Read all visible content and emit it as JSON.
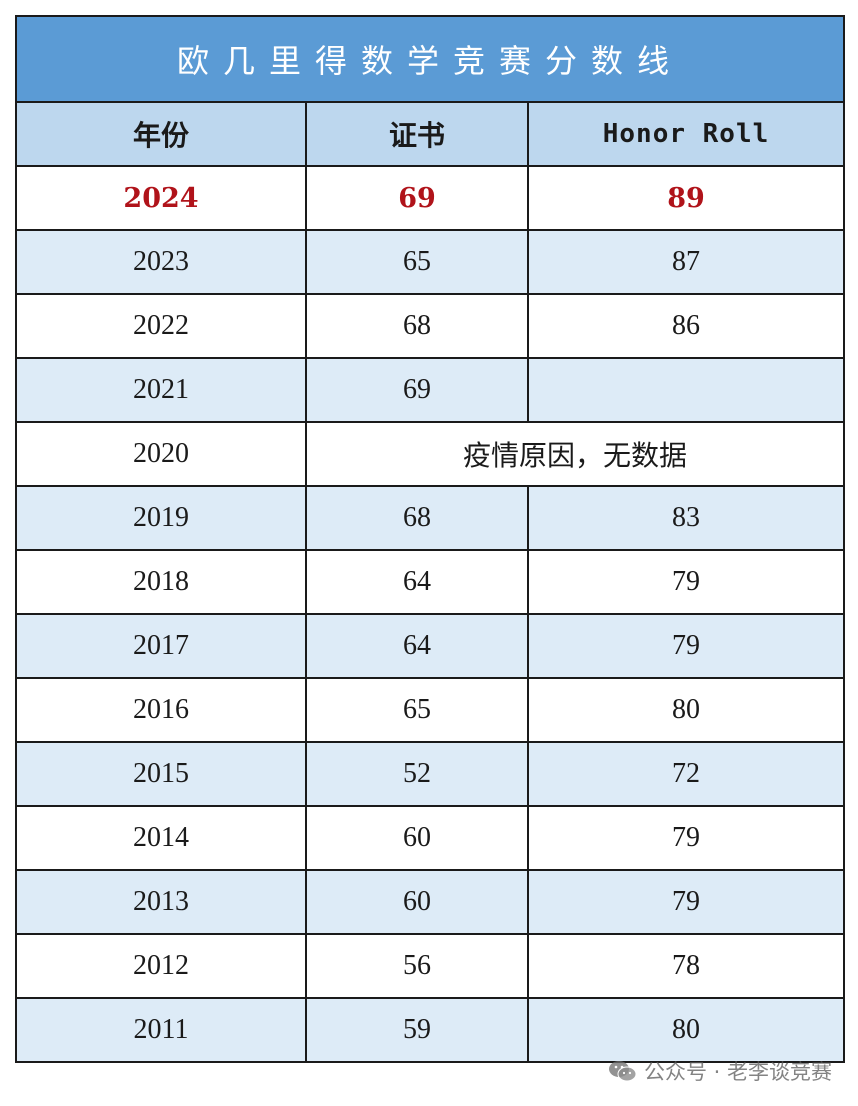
{
  "table": {
    "title": "欧几里得数学竞赛分数线",
    "headers": [
      "年份",
      "证书",
      "Honor Roll"
    ],
    "rows": [
      {
        "year": "2024",
        "certificate": "69",
        "honor_roll": "89",
        "highlight": true
      },
      {
        "year": "2023",
        "certificate": "65",
        "honor_roll": "87"
      },
      {
        "year": "2022",
        "certificate": "68",
        "honor_roll": "86"
      },
      {
        "year": "2021",
        "certificate": "69",
        "honor_roll": ""
      },
      {
        "year": "2020",
        "note": "疫情原因，无数据"
      },
      {
        "year": "2019",
        "certificate": "68",
        "honor_roll": "83"
      },
      {
        "year": "2018",
        "certificate": "64",
        "honor_roll": "79"
      },
      {
        "year": "2017",
        "certificate": "64",
        "honor_roll": "79"
      },
      {
        "year": "2016",
        "certificate": "65",
        "honor_roll": "80"
      },
      {
        "year": "2015",
        "certificate": "52",
        "honor_roll": "72"
      },
      {
        "year": "2014",
        "certificate": "60",
        "honor_roll": "79"
      },
      {
        "year": "2013",
        "certificate": "60",
        "honor_roll": "79"
      },
      {
        "year": "2012",
        "certificate": "56",
        "honor_roll": "78"
      },
      {
        "year": "2011",
        "certificate": "59",
        "honor_roll": "80"
      }
    ]
  },
  "colors": {
    "title_bg": "#5b9bd5",
    "header_bg": "#bdd7ee",
    "alt_row_bg": "#ddebf7",
    "highlight_text": "#b0131a"
  },
  "watermark": {
    "text": "公众号 · 老李谈竞赛",
    "icon": "wechat-icon"
  }
}
